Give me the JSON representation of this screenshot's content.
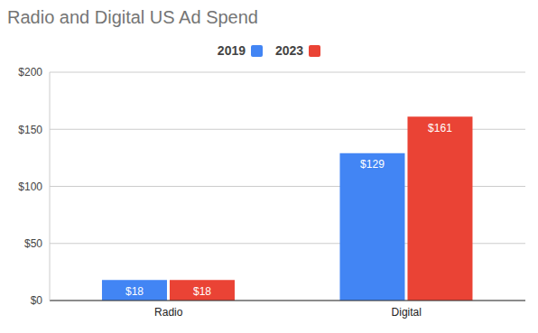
{
  "chart_data": {
    "type": "bar",
    "title": "Radio and Digital US Ad Spend",
    "categories": [
      "Radio",
      "Digital"
    ],
    "series": [
      {
        "name": "2019",
        "color": "#4285f4",
        "values": [
          18,
          129
        ],
        "value_labels": [
          "$18",
          "$129"
        ]
      },
      {
        "name": "2023",
        "color": "#ea4335",
        "values": [
          18,
          161
        ],
        "value_labels": [
          "$18",
          "$161"
        ]
      }
    ],
    "ylim": [
      0,
      200
    ],
    "yticks": [
      {
        "value": 0,
        "label": "$0"
      },
      {
        "value": 50,
        "label": "$50"
      },
      {
        "value": 100,
        "label": "$100"
      },
      {
        "value": 150,
        "label": "$150"
      },
      {
        "value": 200,
        "label": "$200"
      }
    ],
    "grid": true,
    "legend": "top",
    "data_labels": true
  }
}
